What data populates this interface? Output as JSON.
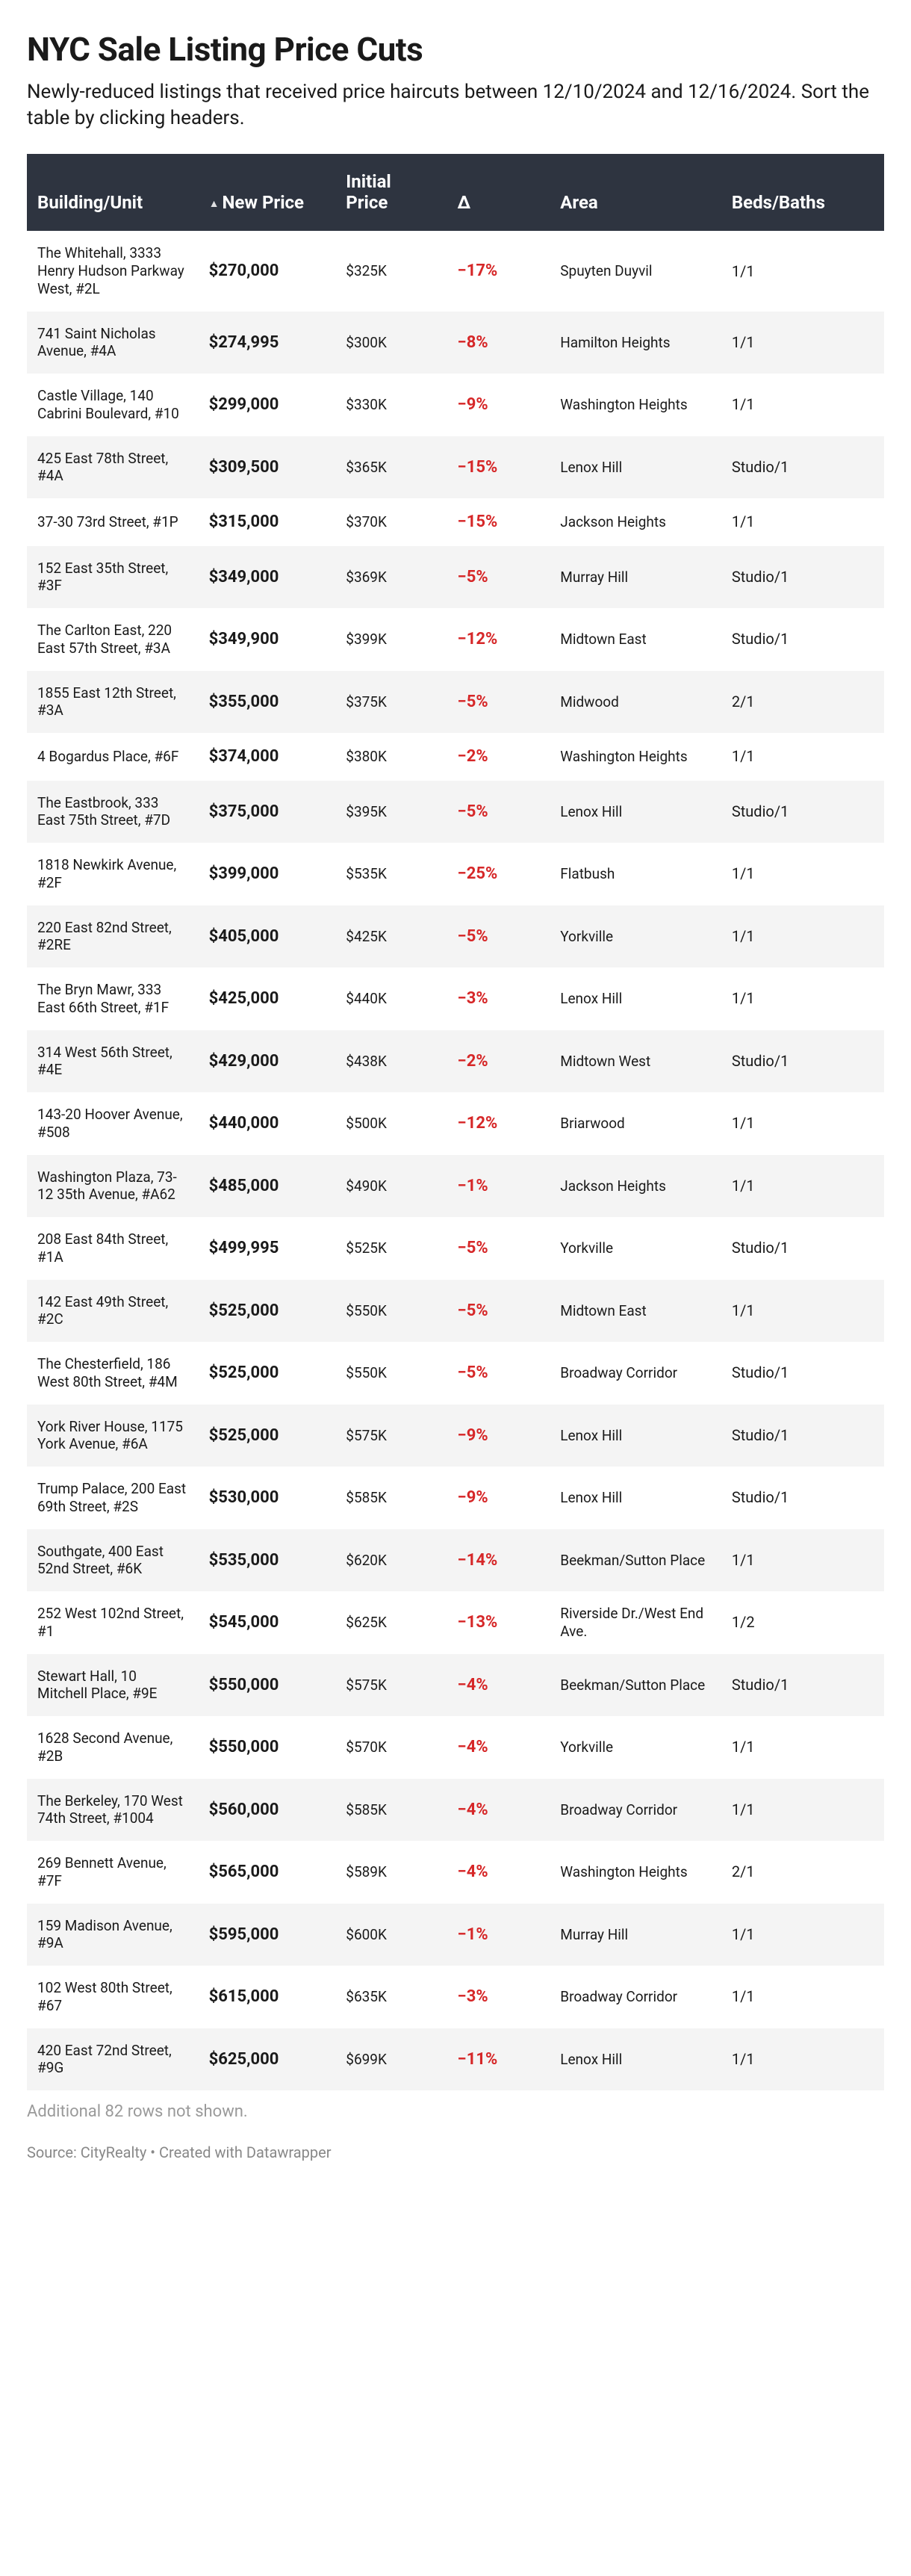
{
  "title": "NYC Sale Listing Price Cuts",
  "subtitle": "Newly-reduced listings that received price haircuts between 12/10/2024 and 12/16/2024. Sort the table by clicking headers.",
  "table": {
    "header_bg": "#2e3440",
    "header_fg": "#ffffff",
    "row_alt_bg": "#f4f4f4",
    "delta_color": "#d62728",
    "sort_indicator": "▲",
    "sorted_column_index": 1,
    "columns": [
      {
        "key": "building",
        "label": "Building/Unit",
        "width_pct": 20,
        "bold": false
      },
      {
        "key": "new_price",
        "label": "New Price",
        "width_pct": 16,
        "bold": true,
        "sorted": true
      },
      {
        "key": "initial_price",
        "label": "Initial Price",
        "width_pct": 13,
        "bold": false
      },
      {
        "key": "delta",
        "label": "Δ",
        "width_pct": 12,
        "bold": true,
        "color": "#d62728"
      },
      {
        "key": "area",
        "label": "Area",
        "width_pct": 20,
        "bold": false
      },
      {
        "key": "beds_baths",
        "label": "Beds/Baths",
        "width_pct": 19,
        "bold": false
      }
    ],
    "rows": [
      {
        "building": "The Whitehall, 3333 Henry Hudson Parkway West, #2L",
        "new_price": "$270,000",
        "initial_price": "$325K",
        "delta": "−17%",
        "area": "Spuyten Duyvil",
        "beds_baths": "1/1"
      },
      {
        "building": "741 Saint Nicholas Avenue, #4A",
        "new_price": "$274,995",
        "initial_price": "$300K",
        "delta": "−8%",
        "area": "Hamilton Heights",
        "beds_baths": "1/1"
      },
      {
        "building": "Castle Village, 140 Cabrini Boulevard, #10",
        "new_price": "$299,000",
        "initial_price": "$330K",
        "delta": "−9%",
        "area": "Washington Heights",
        "beds_baths": "1/1"
      },
      {
        "building": "425 East 78th Street, #4A",
        "new_price": "$309,500",
        "initial_price": "$365K",
        "delta": "−15%",
        "area": "Lenox Hill",
        "beds_baths": "Studio/1"
      },
      {
        "building": "37-30 73rd Street, #1P",
        "new_price": "$315,000",
        "initial_price": "$370K",
        "delta": "−15%",
        "area": "Jackson Heights",
        "beds_baths": "1/1"
      },
      {
        "building": "152 East 35th Street, #3F",
        "new_price": "$349,000",
        "initial_price": "$369K",
        "delta": "−5%",
        "area": "Murray Hill",
        "beds_baths": "Studio/1"
      },
      {
        "building": "The Carlton East, 220 East 57th Street, #3A",
        "new_price": "$349,900",
        "initial_price": "$399K",
        "delta": "−12%",
        "area": "Midtown East",
        "beds_baths": "Studio/1"
      },
      {
        "building": "1855 East 12th Street, #3A",
        "new_price": "$355,000",
        "initial_price": "$375K",
        "delta": "−5%",
        "area": "Midwood",
        "beds_baths": "2/1"
      },
      {
        "building": "4 Bogardus Place, #6F",
        "new_price": "$374,000",
        "initial_price": "$380K",
        "delta": "−2%",
        "area": "Washington Heights",
        "beds_baths": "1/1"
      },
      {
        "building": "The Eastbrook, 333 East 75th Street, #7D",
        "new_price": "$375,000",
        "initial_price": "$395K",
        "delta": "−5%",
        "area": "Lenox Hill",
        "beds_baths": "Studio/1"
      },
      {
        "building": "1818 Newkirk Avenue, #2F",
        "new_price": "$399,000",
        "initial_price": "$535K",
        "delta": "−25%",
        "area": "Flatbush",
        "beds_baths": "1/1"
      },
      {
        "building": "220 East 82nd Street, #2RE",
        "new_price": "$405,000",
        "initial_price": "$425K",
        "delta": "−5%",
        "area": "Yorkville",
        "beds_baths": "1/1"
      },
      {
        "building": "The Bryn Mawr, 333 East 66th Street, #1F",
        "new_price": "$425,000",
        "initial_price": "$440K",
        "delta": "−3%",
        "area": "Lenox Hill",
        "beds_baths": "1/1"
      },
      {
        "building": "314 West 56th Street, #4E",
        "new_price": "$429,000",
        "initial_price": "$438K",
        "delta": "−2%",
        "area": "Midtown West",
        "beds_baths": "Studio/1"
      },
      {
        "building": "143-20 Hoover Avenue, #508",
        "new_price": "$440,000",
        "initial_price": "$500K",
        "delta": "−12%",
        "area": "Briarwood",
        "beds_baths": "1/1"
      },
      {
        "building": "Washington Plaza, 73-12 35th Avenue, #A62",
        "new_price": "$485,000",
        "initial_price": "$490K",
        "delta": "−1%",
        "area": "Jackson Heights",
        "beds_baths": "1/1"
      },
      {
        "building": "208 East 84th Street, #1A",
        "new_price": "$499,995",
        "initial_price": "$525K",
        "delta": "−5%",
        "area": "Yorkville",
        "beds_baths": "Studio/1"
      },
      {
        "building": "142 East 49th Street, #2C",
        "new_price": "$525,000",
        "initial_price": "$550K",
        "delta": "−5%",
        "area": "Midtown East",
        "beds_baths": "1/1"
      },
      {
        "building": "The Chesterfield, 186 West 80th Street, #4M",
        "new_price": "$525,000",
        "initial_price": "$550K",
        "delta": "−5%",
        "area": "Broadway Corridor",
        "beds_baths": "Studio/1"
      },
      {
        "building": "York River House, 1175 York Avenue, #6A",
        "new_price": "$525,000",
        "initial_price": "$575K",
        "delta": "−9%",
        "area": "Lenox Hill",
        "beds_baths": "Studio/1"
      },
      {
        "building": "Trump Palace, 200 East 69th Street, #2S",
        "new_price": "$530,000",
        "initial_price": "$585K",
        "delta": "−9%",
        "area": "Lenox Hill",
        "beds_baths": "Studio/1"
      },
      {
        "building": "Southgate, 400 East 52nd Street, #6K",
        "new_price": "$535,000",
        "initial_price": "$620K",
        "delta": "−14%",
        "area": "Beekman/Sutton Place",
        "beds_baths": "1/1"
      },
      {
        "building": "252 West 102nd Street, #1",
        "new_price": "$545,000",
        "initial_price": "$625K",
        "delta": "−13%",
        "area": "Riverside Dr./West End Ave.",
        "beds_baths": "1/2"
      },
      {
        "building": "Stewart Hall, 10 Mitchell Place, #9E",
        "new_price": "$550,000",
        "initial_price": "$575K",
        "delta": "−4%",
        "area": "Beekman/Sutton Place",
        "beds_baths": "Studio/1"
      },
      {
        "building": "1628 Second Avenue, #2B",
        "new_price": "$550,000",
        "initial_price": "$570K",
        "delta": "−4%",
        "area": "Yorkville",
        "beds_baths": "1/1"
      },
      {
        "building": "The Berkeley, 170 West 74th Street, #1004",
        "new_price": "$560,000",
        "initial_price": "$585K",
        "delta": "−4%",
        "area": "Broadway Corridor",
        "beds_baths": "1/1"
      },
      {
        "building": "269 Bennett Avenue, #7F",
        "new_price": "$565,000",
        "initial_price": "$589K",
        "delta": "−4%",
        "area": "Washington Heights",
        "beds_baths": "2/1"
      },
      {
        "building": "159 Madison Avenue, #9A",
        "new_price": "$595,000",
        "initial_price": "$600K",
        "delta": "−1%",
        "area": "Murray Hill",
        "beds_baths": "1/1"
      },
      {
        "building": "102 West 80th Street, #67",
        "new_price": "$615,000",
        "initial_price": "$635K",
        "delta": "−3%",
        "area": "Broadway Corridor",
        "beds_baths": "1/1"
      },
      {
        "building": "420 East 72nd Street, #9G",
        "new_price": "$625,000",
        "initial_price": "$699K",
        "delta": "−11%",
        "area": "Lenox Hill",
        "beds_baths": "1/1"
      }
    ]
  },
  "footer_rows_note": "Additional 82 rows not shown.",
  "source_line": "Source: CityRealty • Created with Datawrapper"
}
